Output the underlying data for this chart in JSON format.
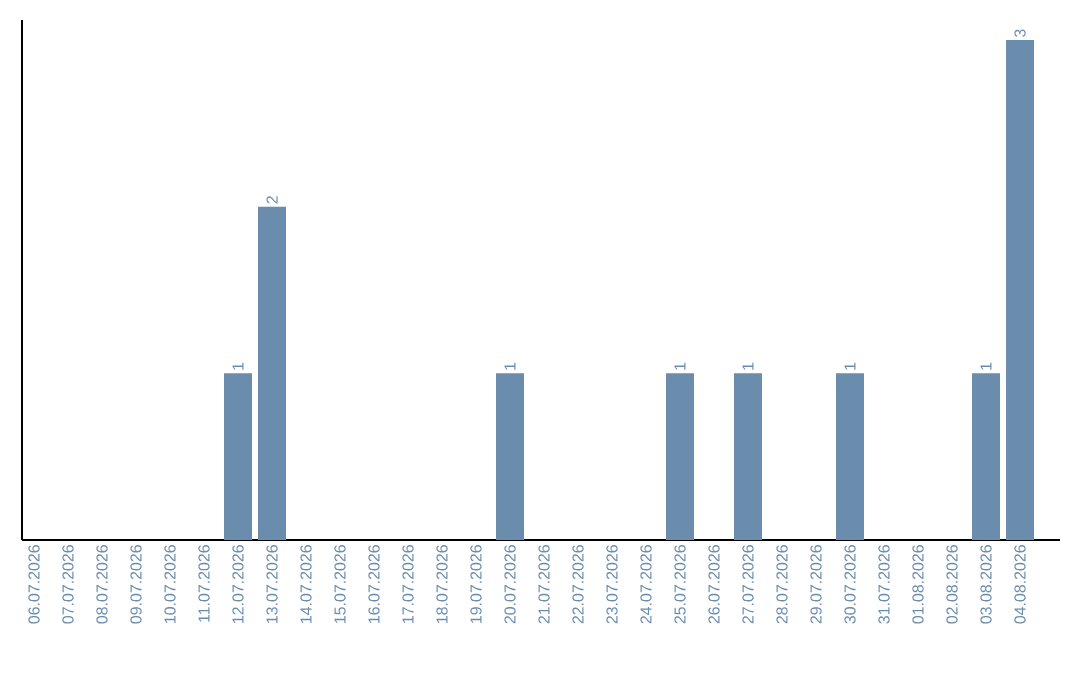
{
  "chart_data": {
    "type": "bar",
    "categories": [
      "06.07.2026",
      "07.07.2026",
      "08.07.2026",
      "09.07.2026",
      "10.07.2026",
      "11.07.2026",
      "12.07.2026",
      "13.07.2026",
      "14.07.2026",
      "15.07.2026",
      "16.07.2026",
      "17.07.2026",
      "18.07.2026",
      "19.07.2026",
      "20.07.2026",
      "21.07.2026",
      "22.07.2026",
      "23.07.2026",
      "24.07.2026",
      "25.07.2026",
      "26.07.2026",
      "27.07.2026",
      "28.07.2026",
      "29.07.2026",
      "30.07.2026",
      "31.07.2026",
      "01.08.2026",
      "02.08.2026",
      "03.08.2026",
      "04.08.2026"
    ],
    "values": [
      0,
      0,
      0,
      0,
      0,
      0,
      1,
      2,
      0,
      0,
      0,
      0,
      0,
      0,
      1,
      0,
      0,
      0,
      0,
      1,
      0,
      1,
      0,
      0,
      1,
      0,
      0,
      0,
      1,
      3
    ],
    "value_labels": [
      null,
      null,
      null,
      null,
      null,
      null,
      "1",
      "2",
      null,
      null,
      null,
      null,
      null,
      null,
      "1",
      null,
      null,
      null,
      null,
      "1",
      null,
      "1",
      null,
      null,
      "1",
      null,
      null,
      null,
      "1",
      "3"
    ],
    "color": "#6a8cad",
    "tick_labels": "x"
  }
}
